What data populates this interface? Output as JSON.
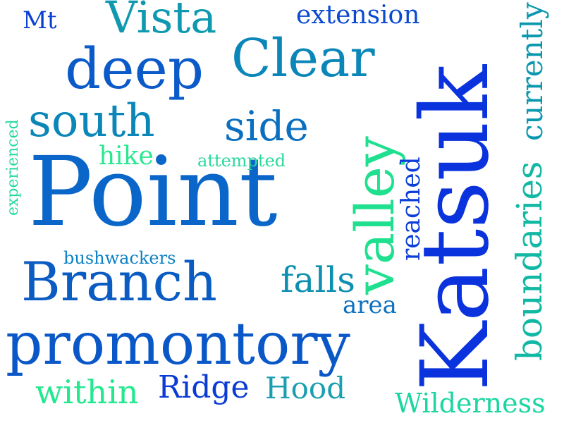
{
  "words": [
    {
      "text": "Point",
      "color": "#0a66c8"
    },
    {
      "text": "Katsuk",
      "color": "#0a33dd"
    },
    {
      "text": "promontory",
      "color": "#0a57c8"
    },
    {
      "text": "Branch",
      "color": "#0a5cc2"
    },
    {
      "text": "Clear",
      "color": "#0a86b8"
    },
    {
      "text": "deep",
      "color": "#0a5ac9"
    },
    {
      "text": "valley",
      "color": "#1fe08f"
    },
    {
      "text": "Vista",
      "color": "#0e99b0"
    },
    {
      "text": "south",
      "color": "#0a86b8"
    },
    {
      "text": "side",
      "color": "#0a6fc0"
    },
    {
      "text": "boundaries",
      "color": "#11b8a3"
    },
    {
      "text": "currently",
      "color": "#0a98ae"
    },
    {
      "text": "Ridge",
      "color": "#0a3bd5"
    },
    {
      "text": "within",
      "color": "#22e88e"
    },
    {
      "text": "Hood",
      "color": "#1a9fb0"
    },
    {
      "text": "Wilderness",
      "color": "#1ad6a0"
    },
    {
      "text": "falls",
      "color": "#0c8fb0"
    },
    {
      "text": "area",
      "color": "#0a71c0"
    },
    {
      "text": "reached",
      "color": "#0a3ed8"
    },
    {
      "text": "extension",
      "color": "#0a4ad2"
    },
    {
      "text": "hike",
      "color": "#2ae890"
    },
    {
      "text": "attempted",
      "color": "#2bd99b"
    },
    {
      "text": "bushwackers",
      "color": "#0a7fc4"
    },
    {
      "text": "experienced",
      "color": "#22d8a0"
    },
    {
      "text": "Mt",
      "color": "#0a40d0"
    }
  ]
}
